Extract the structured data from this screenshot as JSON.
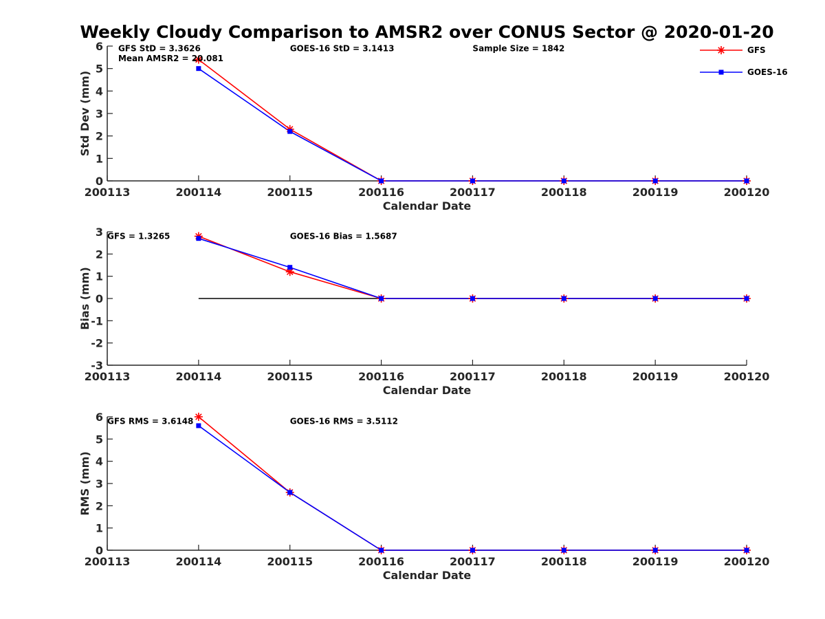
{
  "colors": {
    "gfs": "#ff0000",
    "goes": "#0000ff",
    "axis": "#262626",
    "zero": "#000000"
  },
  "chart_data": {
    "title": "Weekly Cloudy Comparison to AMSR2 over CONUS Sector @ 2020-01-20",
    "legend": {
      "position": "top-right",
      "entries": [
        {
          "name": "GFS",
          "color": "#ff0000",
          "marker": "asterisk"
        },
        {
          "name": "GOES-16",
          "color": "#0000ff",
          "marker": "square"
        }
      ]
    },
    "panels": [
      {
        "type": "line",
        "xlabel": "Calendar Date",
        "ylabel": "Std Dev (mm)",
        "x": [
          200113,
          200114,
          200115,
          200116,
          200117,
          200118,
          200119,
          200120
        ],
        "xticks": [
          "200113",
          "200114",
          "200115",
          "200116",
          "200117",
          "200118",
          "200119",
          "200120"
        ],
        "yticks": [
          "0",
          "1",
          "2",
          "3",
          "4",
          "5",
          "6"
        ],
        "xlim": [
          200113,
          200120
        ],
        "ylim": [
          0,
          6
        ],
        "zero_line": false,
        "annotations": [
          {
            "text": "GFS StD = 3.3626",
            "x": 200113.12,
            "y": 5.9
          },
          {
            "text": "Mean AMSR2 = 20.081",
            "x": 200113.12,
            "y": 5.45
          },
          {
            "text": "GOES-16 StD = 3.1413",
            "x": 200115.0,
            "y": 5.9
          },
          {
            "text": "Sample Size = 1842",
            "x": 200117.0,
            "y": 5.9
          }
        ],
        "series": [
          {
            "name": "GFS",
            "x": [
              200114,
              200115,
              200116,
              200117,
              200118,
              200119,
              200120
            ],
            "values": [
              5.4,
              2.3,
              0,
              0,
              0,
              0,
              0
            ]
          },
          {
            "name": "GOES-16",
            "x": [
              200114,
              200115,
              200116,
              200117,
              200118,
              200119,
              200120
            ],
            "values": [
              5.0,
              2.2,
              0,
              0,
              0,
              0,
              0
            ]
          }
        ]
      },
      {
        "type": "line",
        "xlabel": "Calendar Date",
        "ylabel": "Bias (mm)",
        "x": [
          200113,
          200114,
          200115,
          200116,
          200117,
          200118,
          200119,
          200120
        ],
        "xticks": [
          "200113",
          "200114",
          "200115",
          "200116",
          "200117",
          "200118",
          "200119",
          "200120"
        ],
        "yticks": [
          "-3",
          "-2",
          "-1",
          "0",
          "1",
          "2",
          "3"
        ],
        "xlim": [
          200113,
          200120
        ],
        "ylim": [
          -3,
          3
        ],
        "zero_line": true,
        "annotations": [
          {
            "text": "GFS = 1.3265",
            "x": 200113.0,
            "y": 2.8
          },
          {
            "text": "GOES-16 Bias  = 1.5687",
            "x": 200115.0,
            "y": 2.8
          }
        ],
        "series": [
          {
            "name": "GFS",
            "x": [
              200114,
              200115,
              200116,
              200117,
              200118,
              200119,
              200120
            ],
            "values": [
              2.8,
              1.2,
              0,
              0,
              0,
              0,
              0
            ]
          },
          {
            "name": "GOES-16",
            "x": [
              200114,
              200115,
              200116,
              200117,
              200118,
              200119,
              200120
            ],
            "values": [
              2.7,
              1.4,
              0,
              0,
              0,
              0,
              0
            ]
          }
        ]
      },
      {
        "type": "line",
        "xlabel": "Calendar Date",
        "ylabel": "RMS (mm)",
        "x": [
          200113,
          200114,
          200115,
          200116,
          200117,
          200118,
          200119,
          200120
        ],
        "xticks": [
          "200113",
          "200114",
          "200115",
          "200116",
          "200117",
          "200118",
          "200119",
          "200120"
        ],
        "yticks": [
          "0",
          "1",
          "2",
          "3",
          "4",
          "5",
          "6"
        ],
        "xlim": [
          200113,
          200120
        ],
        "ylim": [
          0,
          6
        ],
        "zero_line": false,
        "annotations": [
          {
            "text": "GFS RMS = 3.6148",
            "x": 200113.0,
            "y": 5.8
          },
          {
            "text": "GOES-16 RMS = 3.5112",
            "x": 200115.0,
            "y": 5.8
          }
        ],
        "series": [
          {
            "name": "GFS",
            "x": [
              200114,
              200115,
              200116,
              200117,
              200118,
              200119,
              200120
            ],
            "values": [
              6.0,
              2.6,
              0,
              0,
              0,
              0,
              0
            ]
          },
          {
            "name": "GOES-16",
            "x": [
              200114,
              200115,
              200116,
              200117,
              200118,
              200119,
              200120
            ],
            "values": [
              5.6,
              2.6,
              0,
              0,
              0,
              0,
              0
            ]
          }
        ]
      }
    ]
  }
}
